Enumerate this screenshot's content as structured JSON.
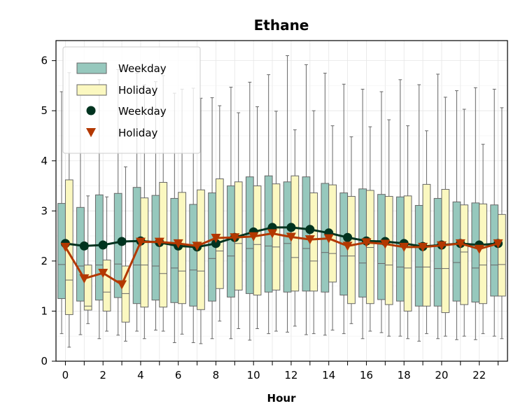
{
  "chart_data": {
    "type": "box",
    "title": "Ethane",
    "xlabel": "Hour",
    "ylabel": "",
    "x": [
      0,
      1,
      2,
      3,
      4,
      5,
      6,
      7,
      8,
      9,
      10,
      11,
      12,
      13,
      14,
      15,
      16,
      17,
      18,
      19,
      20,
      21,
      22,
      23
    ],
    "xticks": [
      0,
      2,
      4,
      6,
      8,
      10,
      12,
      14,
      16,
      18,
      20,
      22
    ],
    "xtick_labels": [
      "0",
      "2",
      "4",
      "6",
      "8",
      "10",
      "12",
      "14",
      "16",
      "18",
      "20",
      "22"
    ],
    "yticks": [
      0,
      1,
      2,
      3,
      4,
      5,
      6
    ],
    "ytick_labels": [
      "0",
      "1",
      "2",
      "3",
      "4",
      "5",
      "6"
    ],
    "ylim": [
      0,
      6.4
    ],
    "grid": true,
    "legend_position": "top-left",
    "colors": {
      "weekday_box": "#96c8bd",
      "holiday_box": "#fbf8c0",
      "weekday_line": "#00331f",
      "holiday_line": "#b33800",
      "whisker": "#666666"
    },
    "legend": [
      "Weekday",
      "Holiday",
      "Weekday",
      "Holiday"
    ],
    "box_series": [
      {
        "name": "Weekday",
        "boxes": [
          {
            "x": 0,
            "whislo": 0.55,
            "q1": 1.25,
            "med": 1.93,
            "q3": 3.15,
            "whishi": 5.38
          },
          {
            "x": 1,
            "whislo": 0.53,
            "q1": 1.2,
            "med": 1.9,
            "q3": 3.07,
            "whishi": 5.52
          },
          {
            "x": 2,
            "whislo": 0.45,
            "q1": 1.22,
            "med": 1.92,
            "q3": 3.32,
            "whishi": 5.62
          },
          {
            "x": 3,
            "whislo": 0.52,
            "q1": 1.27,
            "med": 1.94,
            "q3": 3.35,
            "whishi": 5.82
          },
          {
            "x": 4,
            "whislo": 0.6,
            "q1": 1.15,
            "med": 1.92,
            "q3": 3.47,
            "whishi": 5.75
          },
          {
            "x": 5,
            "whislo": 0.62,
            "q1": 1.22,
            "med": 1.9,
            "q3": 3.31,
            "whishi": 5.58
          },
          {
            "x": 6,
            "whislo": 0.37,
            "q1": 1.17,
            "med": 1.86,
            "q3": 3.25,
            "whishi": 5.35
          },
          {
            "x": 7,
            "whislo": 0.37,
            "q1": 1.1,
            "med": 1.82,
            "q3": 3.13,
            "whishi": 5.45
          },
          {
            "x": 8,
            "whislo": 0.45,
            "q1": 1.2,
            "med": 2.05,
            "q3": 3.36,
            "whishi": 5.26
          },
          {
            "x": 9,
            "whislo": 0.45,
            "q1": 1.28,
            "med": 2.1,
            "q3": 3.5,
            "whishi": 5.47
          },
          {
            "x": 10,
            "whislo": 0.42,
            "q1": 1.35,
            "med": 2.25,
            "q3": 3.68,
            "whishi": 5.57
          },
          {
            "x": 11,
            "whislo": 0.55,
            "q1": 1.38,
            "med": 2.3,
            "q3": 3.7,
            "whishi": 5.72
          },
          {
            "x": 12,
            "whislo": 0.58,
            "q1": 1.38,
            "med": 2.35,
            "q3": 3.58,
            "whishi": 6.1
          },
          {
            "x": 13,
            "whislo": 0.53,
            "q1": 1.4,
            "med": 2.25,
            "q3": 3.68,
            "whishi": 5.92
          },
          {
            "x": 14,
            "whislo": 0.52,
            "q1": 1.38,
            "med": 2.17,
            "q3": 3.55,
            "whishi": 5.75
          },
          {
            "x": 15,
            "whislo": 0.55,
            "q1": 1.32,
            "med": 2.1,
            "q3": 3.36,
            "whishi": 5.53
          },
          {
            "x": 16,
            "whislo": 0.45,
            "q1": 1.28,
            "med": 1.96,
            "q3": 3.44,
            "whishi": 5.43
          },
          {
            "x": 17,
            "whislo": 0.57,
            "q1": 1.23,
            "med": 1.95,
            "q3": 3.33,
            "whishi": 5.38
          },
          {
            "x": 18,
            "whislo": 0.5,
            "q1": 1.2,
            "med": 1.88,
            "q3": 3.28,
            "whishi": 5.62
          },
          {
            "x": 19,
            "whislo": 0.4,
            "q1": 1.1,
            "med": 1.88,
            "q3": 3.11,
            "whishi": 5.52
          },
          {
            "x": 20,
            "whislo": 0.45,
            "q1": 1.1,
            "med": 1.85,
            "q3": 3.25,
            "whishi": 5.73
          },
          {
            "x": 21,
            "whislo": 0.43,
            "q1": 1.2,
            "med": 1.97,
            "q3": 3.18,
            "whishi": 5.4
          },
          {
            "x": 22,
            "whislo": 0.43,
            "q1": 1.18,
            "med": 1.86,
            "q3": 3.16,
            "whishi": 5.46
          },
          {
            "x": 23,
            "whislo": 0.5,
            "q1": 1.3,
            "med": 1.92,
            "q3": 3.12,
            "whishi": 5.43
          }
        ]
      },
      {
        "name": "Holiday",
        "boxes": [
          {
            "x": 0,
            "whislo": 0.28,
            "q1": 0.93,
            "med": 1.62,
            "q3": 3.62,
            "whishi": 5.76
          },
          {
            "x": 1,
            "whislo": 0.75,
            "q1": 1.02,
            "med": 1.1,
            "q3": 1.92,
            "whishi": 3.3
          },
          {
            "x": 2,
            "whislo": 0.6,
            "q1": 1.0,
            "med": 1.38,
            "q3": 2.02,
            "whishi": 3.28
          },
          {
            "x": 3,
            "whislo": 0.4,
            "q1": 0.78,
            "med": 1.35,
            "q3": 1.9,
            "whishi": 3.88
          },
          {
            "x": 4,
            "whislo": 0.45,
            "q1": 1.08,
            "med": 1.92,
            "q3": 3.26,
            "whishi": 5.52
          },
          {
            "x": 5,
            "whislo": 0.6,
            "q1": 1.08,
            "med": 1.75,
            "q3": 3.57,
            "whishi": 5.7
          },
          {
            "x": 6,
            "whislo": 0.54,
            "q1": 1.15,
            "med": 1.8,
            "q3": 3.37,
            "whishi": 5.43
          },
          {
            "x": 7,
            "whislo": 0.35,
            "q1": 1.03,
            "med": 1.8,
            "q3": 3.42,
            "whishi": 5.25
          },
          {
            "x": 8,
            "whislo": 0.8,
            "q1": 1.45,
            "med": 2.2,
            "q3": 3.64,
            "whishi": 5.1
          },
          {
            "x": 9,
            "whislo": 0.65,
            "q1": 1.42,
            "med": 2.35,
            "q3": 3.58,
            "whishi": 4.96
          },
          {
            "x": 10,
            "whislo": 0.65,
            "q1": 1.32,
            "med": 2.33,
            "q3": 3.5,
            "whishi": 5.08
          },
          {
            "x": 11,
            "whislo": 0.6,
            "q1": 1.42,
            "med": 2.28,
            "q3": 3.54,
            "whishi": 4.99
          },
          {
            "x": 12,
            "whislo": 0.7,
            "q1": 1.4,
            "med": 2.07,
            "q3": 3.7,
            "whishi": 4.62
          },
          {
            "x": 13,
            "whislo": 0.55,
            "q1": 1.4,
            "med": 2.0,
            "q3": 3.36,
            "whishi": 5.0
          },
          {
            "x": 14,
            "whislo": 0.62,
            "q1": 1.58,
            "med": 2.15,
            "q3": 3.52,
            "whishi": 4.7
          },
          {
            "x": 15,
            "whislo": 0.75,
            "q1": 1.15,
            "med": 2.1,
            "q3": 3.29,
            "whishi": 4.48
          },
          {
            "x": 16,
            "whislo": 0.6,
            "q1": 1.15,
            "med": 2.27,
            "q3": 3.41,
            "whishi": 4.68
          },
          {
            "x": 17,
            "whislo": 0.5,
            "q1": 1.13,
            "med": 1.92,
            "q3": 3.29,
            "whishi": 4.82
          },
          {
            "x": 18,
            "whislo": 0.45,
            "q1": 1.0,
            "med": 1.86,
            "q3": 3.3,
            "whishi": 4.7
          },
          {
            "x": 19,
            "whislo": 0.55,
            "q1": 1.1,
            "med": 1.88,
            "q3": 3.53,
            "whishi": 4.6
          },
          {
            "x": 20,
            "whislo": 0.5,
            "q1": 0.97,
            "med": 1.85,
            "q3": 3.43,
            "whishi": 5.27
          },
          {
            "x": 21,
            "whislo": 0.5,
            "q1": 1.13,
            "med": 2.18,
            "q3": 3.12,
            "whishi": 5.03
          },
          {
            "x": 22,
            "whislo": 0.55,
            "q1": 1.15,
            "med": 1.92,
            "q3": 3.14,
            "whishi": 4.33
          },
          {
            "x": 23,
            "whislo": 0.45,
            "q1": 1.3,
            "med": 1.93,
            "q3": 2.93,
            "whishi": 5.06
          }
        ]
      }
    ],
    "line_series": [
      {
        "name": "Weekday",
        "marker": "circle",
        "values": [
          2.35,
          2.3,
          2.32,
          2.39,
          2.4,
          2.37,
          2.3,
          2.28,
          2.35,
          2.47,
          2.58,
          2.67,
          2.67,
          2.63,
          2.56,
          2.47,
          2.4,
          2.39,
          2.35,
          2.29,
          2.32,
          2.35,
          2.32,
          2.35
        ]
      },
      {
        "name": "Holiday",
        "marker": "triangle-down",
        "values": [
          2.28,
          1.65,
          1.76,
          1.53,
          2.38,
          2.38,
          2.35,
          2.3,
          2.46,
          2.47,
          2.49,
          2.55,
          2.48,
          2.43,
          2.45,
          2.3,
          2.37,
          2.34,
          2.28,
          2.28,
          2.31,
          2.35,
          2.24,
          2.35
        ]
      }
    ]
  }
}
